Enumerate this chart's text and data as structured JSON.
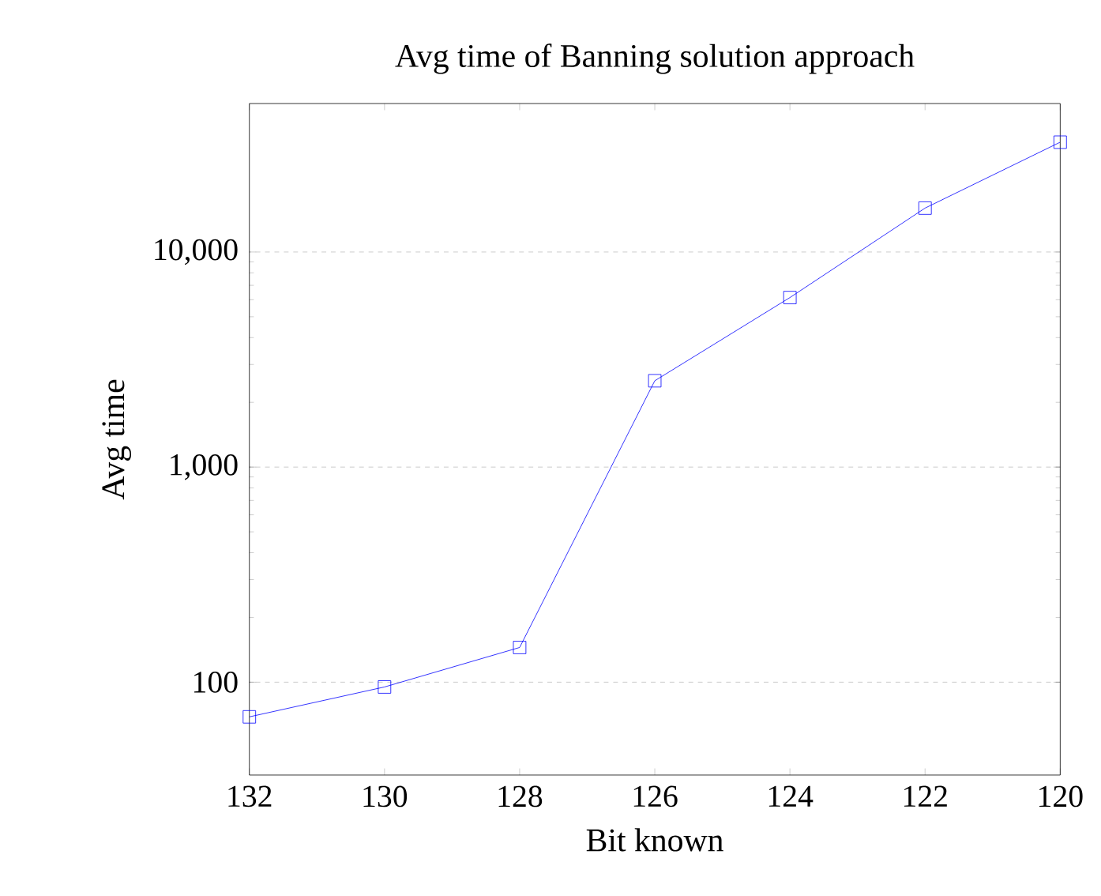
{
  "chart_data": {
    "type": "line",
    "title": "Avg time of Banning solution approach",
    "xlabel": "Bit known",
    "ylabel": "Avg time",
    "x": [
      132,
      130,
      128,
      126,
      124,
      122,
      120
    ],
    "series": [
      {
        "color": "#0000ff",
        "values": [
          69,
          95,
          145,
          2520,
          6140,
          16000,
          32400
        ]
      }
    ],
    "xlim": [
      132,
      120
    ],
    "xticks": [
      132,
      130,
      128,
      126,
      124,
      122,
      120
    ],
    "ylim": [
      37,
      49000
    ],
    "yticks": [
      {
        "value": 100,
        "label": "100"
      },
      {
        "value": 1000,
        "label": "1,000"
      },
      {
        "value": 10000,
        "label": "10,000"
      }
    ],
    "log": "y",
    "grid": "y",
    "marker": "square",
    "line_style": "solid"
  }
}
